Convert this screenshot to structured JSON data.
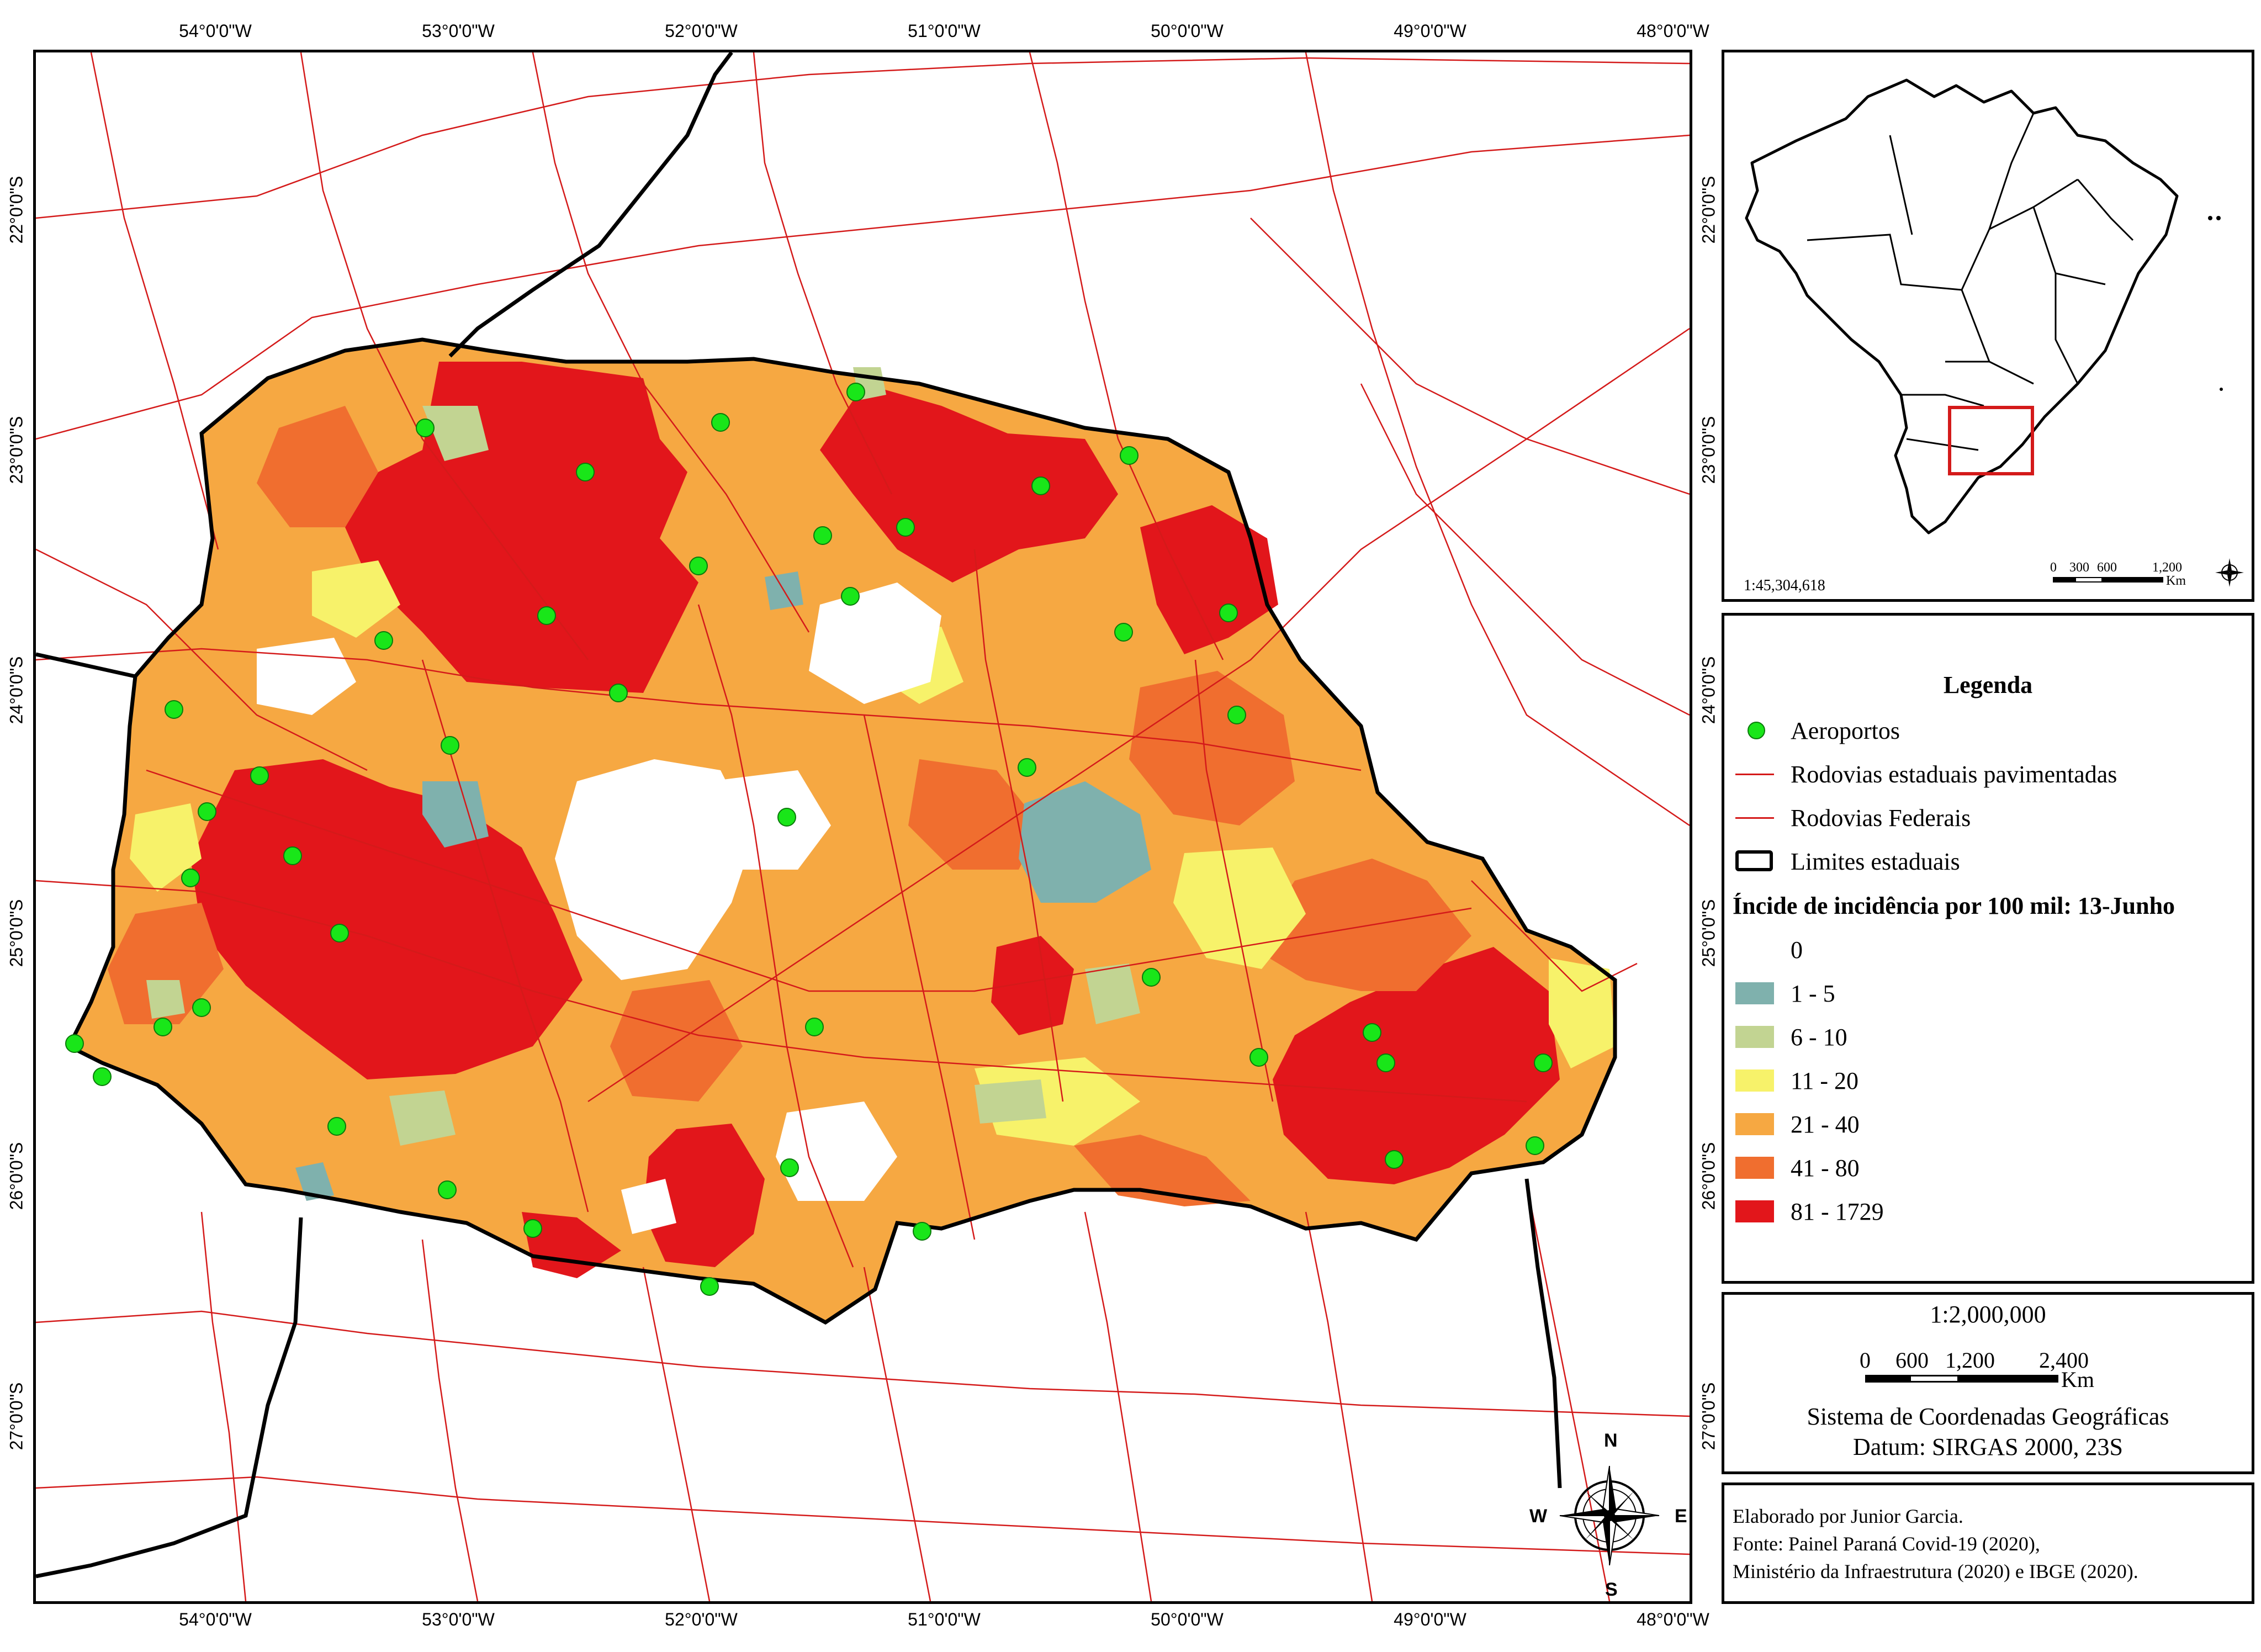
{
  "main_map": {
    "top_labels": [
      "54°0'0\"W",
      "53°0'0\"W",
      "52°0'0\"W",
      "51°0'0\"W",
      "50°0'0\"W",
      "49°0'0\"W",
      "48°0'0\"W"
    ],
    "bottom_labels": [
      "54°0'0\"W",
      "53°0'0\"W",
      "52°0'0\"W",
      "51°0'0\"W",
      "50°0'0\"W",
      "49°0'0\"W",
      "48°0'0\"W"
    ],
    "left_labels": [
      "22°0'0\"S",
      "23°0'0\"S",
      "24°0'0\"S",
      "25°0'0\"S",
      "26°0'0\"S",
      "27°0'0\"S"
    ],
    "right_labels": [
      "22°0'0\"S",
      "23°0'0\"S",
      "24°0'0\"S",
      "25°0'0\"S",
      "26°0'0\"S",
      "27°0'0\"S"
    ],
    "compass": {
      "n": "N",
      "s": "S",
      "e": "E",
      "w": "W"
    }
  },
  "inset": {
    "scale_ratio": "1:45,304,618",
    "scale_ticks": [
      "0",
      "300",
      "600",
      "1,200"
    ],
    "scale_unit": "Km"
  },
  "legend": {
    "title": "Legenda",
    "items": [
      {
        "label": "Aeroportos",
        "symbol": "point",
        "color": "#19e619"
      },
      {
        "label": "Rodovias estaduais pavimentadas",
        "symbol": "line",
        "color": "#d41a1a"
      },
      {
        "label": "Rodovias Federais",
        "symbol": "line",
        "color": "#d41a1a"
      },
      {
        "label": "Limites estaduais",
        "symbol": "outline",
        "color": "#000000"
      }
    ],
    "class_title": "Íncide de incidência por 100 mil: 13-Junho",
    "classes": [
      {
        "label": "0",
        "color": "#ffffff"
      },
      {
        "label": "1 - 5",
        "color": "#7fb1ad"
      },
      {
        "label": "6 - 10",
        "color": "#c2d492"
      },
      {
        "label": "11 - 20",
        "color": "#f7f26a"
      },
      {
        "label": "21 - 40",
        "color": "#f6a842"
      },
      {
        "label": "41 - 80",
        "color": "#f06e2f"
      },
      {
        "label": "81 - 1729",
        "color": "#e2161b"
      }
    ]
  },
  "scale_box": {
    "ratio": "1:2,000,000",
    "ticks": [
      "0",
      "600",
      "1,200",
      "2,400"
    ],
    "unit": "Km",
    "crs_line1": "Sistema de Coordenadas Geográficas",
    "crs_line2": "Datum: SIRGAS 2000, 23S"
  },
  "credits": {
    "line1": "Elaborado por Junior Garcia.",
    "line2": "Fonte: Painel Paraná Covid-19 (2020),",
    "line3": "Ministério da Infraestrutura (2020) e IBGE (2020)."
  }
}
